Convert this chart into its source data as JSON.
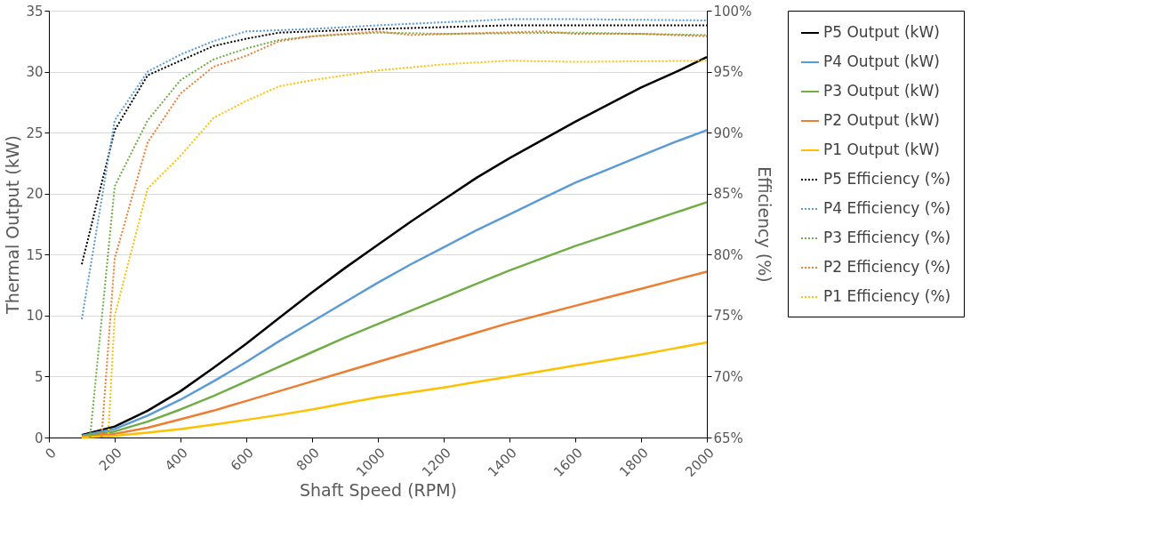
{
  "chart_data": {
    "type": "line",
    "xlabel": "Shaft Speed (RPM)",
    "ylabel": "Thermal Output (kW)",
    "y2label": "Efficiency (%)",
    "xlim": [
      0,
      2000
    ],
    "xticks": [
      0,
      200,
      400,
      600,
      800,
      1000,
      1200,
      1400,
      1600,
      1800,
      2000
    ],
    "ylim": [
      0,
      35
    ],
    "yticks": [
      0,
      5,
      10,
      15,
      20,
      25,
      30,
      35
    ],
    "y2lim": [
      65,
      100
    ],
    "y2ticks": [
      {
        "value": 65,
        "label": "65%"
      },
      {
        "value": 70,
        "label": "70%"
      },
      {
        "value": 75,
        "label": "75%"
      },
      {
        "value": 80,
        "label": "80%"
      },
      {
        "value": 85,
        "label": "85%"
      },
      {
        "value": 90,
        "label": "90%"
      },
      {
        "value": 95,
        "label": "95%"
      },
      {
        "value": 100,
        "label": "100%"
      }
    ],
    "grid": "y",
    "legend": "right",
    "marker": "none",
    "series": [
      {
        "name": "P5 Output (kW)",
        "color": "#000000",
        "line_style": "solid",
        "x": [
          100,
          200,
          300,
          400,
          500,
          600,
          700,
          800,
          900,
          1000,
          1100,
          1200,
          1300,
          1400,
          1500,
          1600,
          1700,
          1800,
          1900,
          2000
        ],
        "values": [
          0.2,
          0.9,
          2.2,
          3.8,
          5.7,
          7.7,
          9.8,
          11.9,
          13.9,
          15.8,
          17.7,
          19.5,
          21.3,
          22.9,
          24.4,
          25.9,
          27.3,
          28.7,
          29.9,
          31.2
        ]
      },
      {
        "name": "P4 Output (kW)",
        "color": "#5b9bd5",
        "line_style": "solid",
        "x": [
          100,
          200,
          300,
          400,
          500,
          600,
          700,
          800,
          900,
          1000,
          1100,
          1200,
          1300,
          1400,
          1500,
          1600,
          1700,
          1800,
          1900,
          2000
        ],
        "values": [
          0.15,
          0.7,
          1.8,
          3.1,
          4.6,
          6.2,
          7.9,
          9.5,
          11.1,
          12.7,
          14.2,
          15.6,
          17.0,
          18.3,
          19.6,
          20.9,
          22.0,
          23.1,
          24.2,
          25.2
        ]
      },
      {
        "name": "P3 Output (kW)",
        "color": "#70ad47",
        "line_style": "solid",
        "x": [
          100,
          200,
          300,
          400,
          500,
          600,
          700,
          800,
          900,
          1000,
          1100,
          1200,
          1300,
          1400,
          1500,
          1600,
          1700,
          1800,
          1900,
          2000
        ],
        "values": [
          0.1,
          0.5,
          1.3,
          2.3,
          3.4,
          4.6,
          5.8,
          7.0,
          8.2,
          9.3,
          10.4,
          11.5,
          12.6,
          13.7,
          14.7,
          15.7,
          16.6,
          17.5,
          18.4,
          19.3
        ]
      },
      {
        "name": "P2 Output (kW)",
        "color": "#ed7d31",
        "line_style": "solid",
        "x": [
          100,
          200,
          300,
          400,
          500,
          600,
          700,
          800,
          900,
          1000,
          1100,
          1200,
          1300,
          1400,
          1500,
          1600,
          1700,
          1800,
          1900,
          2000
        ],
        "values": [
          0.05,
          0.3,
          0.8,
          1.5,
          2.2,
          3.0,
          3.8,
          4.6,
          5.4,
          6.2,
          7.0,
          7.8,
          8.6,
          9.4,
          10.1,
          10.8,
          11.5,
          12.2,
          12.9,
          13.6
        ]
      },
      {
        "name": "P1 Output (kW)",
        "color": "#ffc000",
        "line_style": "solid",
        "x": [
          100,
          200,
          300,
          400,
          500,
          600,
          700,
          800,
          900,
          1000,
          1100,
          1200,
          1300,
          1400,
          1500,
          1600,
          1700,
          1800,
          1900,
          2000
        ],
        "values": [
          0.0,
          0.15,
          0.4,
          0.7,
          1.05,
          1.45,
          1.85,
          2.3,
          2.8,
          3.3,
          3.7,
          4.1,
          4.55,
          5.0,
          5.45,
          5.9,
          6.35,
          6.8,
          7.3,
          7.8
        ]
      },
      {
        "name": "P5 Efficiency (%)",
        "color": "#000000",
        "line_style": "dotted",
        "axis": "y2",
        "x": [
          100,
          200,
          300,
          400,
          500,
          600,
          700,
          800,
          1000,
          1400,
          2000
        ],
        "values": [
          79.2,
          90.2,
          94.7,
          95.9,
          97.1,
          97.7,
          98.2,
          98.3,
          98.5,
          98.8,
          98.8
        ]
      },
      {
        "name": "P4 Efficiency (%)",
        "color": "#5b9bd5",
        "line_style": "dotted",
        "axis": "y2",
        "x": [
          100,
          200,
          300,
          400,
          500,
          600,
          800,
          1000,
          1400,
          1600,
          2000
        ],
        "values": [
          74.7,
          91.0,
          95.0,
          96.4,
          97.5,
          98.3,
          98.5,
          98.8,
          99.3,
          99.3,
          99.2
        ]
      },
      {
        "name": "P3 Efficiency (%)",
        "color": "#70ad47",
        "line_style": "dotted",
        "axis": "y2",
        "x": [
          125,
          200,
          300,
          400,
          500,
          600,
          700,
          800,
          1000,
          1200,
          1600,
          2000
        ],
        "values": [
          65.0,
          85.6,
          91.0,
          94.3,
          96.0,
          96.9,
          97.6,
          97.9,
          98.2,
          98.1,
          98.2,
          98.0
        ]
      },
      {
        "name": "P2 Efficiency (%)",
        "color": "#ed7d31",
        "line_style": "dotted",
        "axis": "y2",
        "x": [
          160,
          200,
          300,
          400,
          500,
          600,
          700,
          800,
          1000,
          1100,
          1500,
          1600,
          1800,
          2000
        ],
        "values": [
          65.0,
          79.7,
          89.2,
          93.2,
          95.4,
          96.3,
          97.5,
          97.9,
          98.3,
          98.0,
          98.3,
          98.1,
          98.1,
          97.9
        ]
      },
      {
        "name": "P1 Efficiency (%)",
        "color": "#ffc000",
        "line_style": "dotted",
        "axis": "y2",
        "x": [
          180,
          200,
          300,
          400,
          500,
          600,
          700,
          800,
          1000,
          1200,
          1400,
          1600,
          2000
        ],
        "values": [
          65.0,
          75.0,
          85.4,
          88.1,
          91.2,
          92.6,
          93.8,
          94.3,
          95.1,
          95.6,
          95.9,
          95.8,
          95.9
        ]
      }
    ]
  }
}
